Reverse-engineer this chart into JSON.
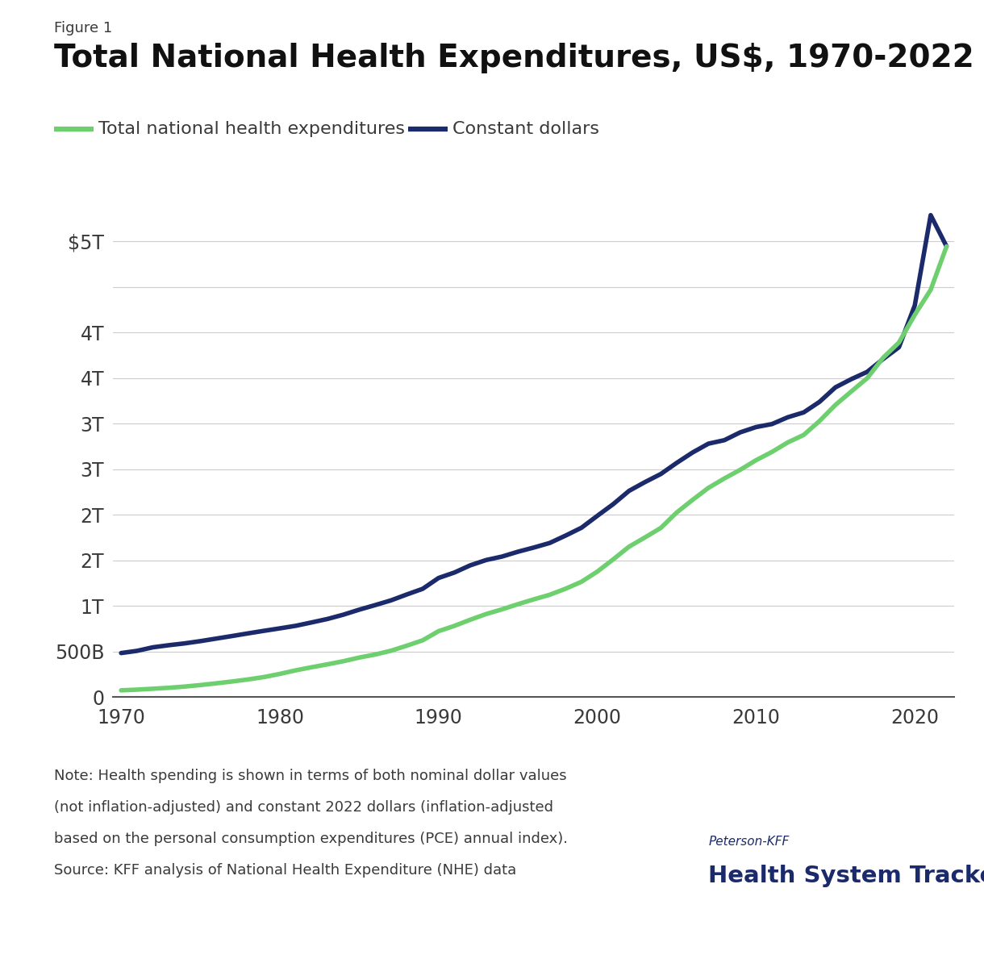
{
  "title": "Total National Health Expenditures, US$, 1970-2022",
  "figure_label": "Figure 1",
  "legend_labels": [
    "Total national health expenditures",
    "Constant dollars"
  ],
  "line_color_nominal": "#6ecf6e",
  "line_color_constant": "#1b2a6b",
  "line_width": 4.0,
  "years": [
    1970,
    1971,
    1972,
    1973,
    1974,
    1975,
    1976,
    1977,
    1978,
    1979,
    1980,
    1981,
    1982,
    1983,
    1984,
    1985,
    1986,
    1987,
    1988,
    1989,
    1990,
    1991,
    1992,
    1993,
    1994,
    1995,
    1996,
    1997,
    1998,
    1999,
    2000,
    2001,
    2002,
    2003,
    2004,
    2005,
    2006,
    2007,
    2008,
    2009,
    2010,
    2011,
    2012,
    2013,
    2014,
    2015,
    2016,
    2017,
    2018,
    2019,
    2020,
    2021,
    2022
  ],
  "nominal_billions": [
    74.9,
    82.5,
    92.4,
    102.7,
    116.0,
    132.7,
    151.8,
    172.0,
    194.5,
    220.6,
    255.3,
    294.2,
    328.3,
    360.3,
    394.4,
    434.5,
    467.7,
    509.4,
    565.0,
    623.9,
    724.3,
    782.5,
    849.8,
    912.5,
    963.8,
    1020.4,
    1073.3,
    1123.6,
    1190.0,
    1266.1,
    1378.0,
    1511.8,
    1651.6,
    1752.8,
    1857.3,
    2026.5,
    2164.9,
    2296.9,
    2399.9,
    2494.8,
    2600.5,
    2691.0,
    2795.9,
    2877.5,
    3031.0,
    3207.0,
    3355.0,
    3500.0,
    3724.0,
    3892.0,
    4196.0,
    4470.0,
    4946.7
  ],
  "constant_billions": [
    484.0,
    508.0,
    547.0,
    570.0,
    590.0,
    615.0,
    643.0,
    671.0,
    700.0,
    728.0,
    755.0,
    783.0,
    820.0,
    858.0,
    905.0,
    960.0,
    1010.0,
    1062.0,
    1127.0,
    1189.0,
    1308.0,
    1368.0,
    1447.0,
    1505.0,
    1543.0,
    1596.0,
    1642.0,
    1692.0,
    1773.0,
    1859.0,
    1990.0,
    2118.0,
    2264.0,
    2360.0,
    2449.0,
    2571.0,
    2685.0,
    2782.0,
    2820.0,
    2906.0,
    2964.0,
    2997.0,
    3072.0,
    3125.0,
    3241.0,
    3400.0,
    3490.0,
    3570.0,
    3710.0,
    3840.0,
    4300.0,
    5290.0,
    4946.7
  ],
  "tick_positions": [
    0,
    500,
    1000,
    1500,
    2000,
    2500,
    3000,
    3500,
    4000,
    4500,
    5000
  ],
  "tick_labels": [
    "0",
    "500B",
    "1T",
    "2T",
    "2T",
    "3T",
    "3T",
    "4T",
    "4T",
    "",
    "$5T"
  ],
  "xtick_values": [
    1970,
    1980,
    1990,
    2000,
    2010,
    2020
  ],
  "xlim": [
    1969.5,
    2022.5
  ],
  "ylim": [
    0,
    5450
  ],
  "background_color": "#ffffff",
  "note_line1": "Note: Health spending is shown in terms of both nominal dollar values",
  "note_line2": "(not inflation-adjusted) and constant 2022 dollars (inflation-adjusted",
  "note_line3": "based on the personal consumption expenditures (PCE) annual index).",
  "note_line4": "Source: KFF analysis of National Health Expenditure (NHE) data",
  "brand_text_top": "Peterson-KFF",
  "brand_text_bottom": "Health System Tracker",
  "grid_color": "#cccccc",
  "text_color": "#3a3a3a",
  "title_color": "#111111",
  "brand_color": "#1b2a6b"
}
